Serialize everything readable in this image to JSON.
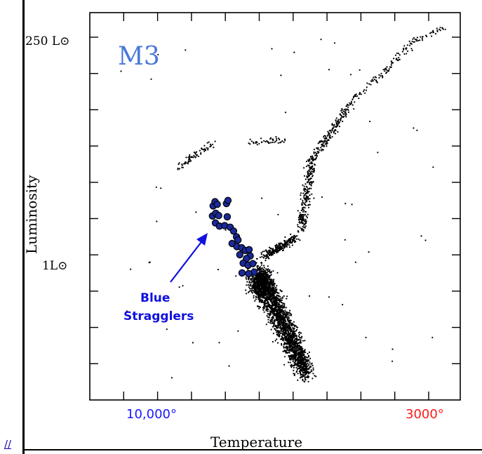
{
  "link": {
    "text": "//"
  },
  "chart_data": {
    "type": "scatter",
    "title": "M3",
    "xlabel": "Temperature",
    "ylabel": "Luminosity",
    "x_tick_labels": [
      {
        "text": "10,000°",
        "color": "#1a1aff"
      },
      {
        "text": "3000°",
        "color": "#ff1a1a"
      }
    ],
    "y_tick_labels": [
      {
        "text": "250 L⊙"
      },
      {
        "text": "1L⊙"
      }
    ],
    "annotation": {
      "lines": [
        "Blue",
        "Stragglers"
      ],
      "color": "#1010e0"
    },
    "colors": {
      "stars": "#000000",
      "blue_stragglers": "#1a2a9a",
      "title": "#4a78d8"
    },
    "series": [
      {
        "name": "Blue Stragglers",
        "points": [
          [
            0.333,
            0.501
          ],
          [
            0.338,
            0.512
          ],
          [
            0.344,
            0.505
          ],
          [
            0.331,
            0.475
          ],
          [
            0.34,
            0.482
          ],
          [
            0.348,
            0.476
          ],
          [
            0.339,
            0.457
          ],
          [
            0.35,
            0.449
          ],
          [
            0.369,
            0.507
          ],
          [
            0.373,
            0.515
          ],
          [
            0.371,
            0.473
          ],
          [
            0.364,
            0.45
          ],
          [
            0.379,
            0.446
          ],
          [
            0.388,
            0.436
          ],
          [
            0.396,
            0.421
          ],
          [
            0.384,
            0.404
          ],
          [
            0.397,
            0.396
          ],
          [
            0.4,
            0.413
          ],
          [
            0.405,
            0.375
          ],
          [
            0.41,
            0.393
          ],
          [
            0.42,
            0.386
          ],
          [
            0.43,
            0.388
          ],
          [
            0.433,
            0.372
          ],
          [
            0.423,
            0.365
          ],
          [
            0.414,
            0.353
          ],
          [
            0.427,
            0.348
          ],
          [
            0.44,
            0.352
          ],
          [
            0.444,
            0.33
          ],
          [
            0.411,
            0.328
          ],
          [
            0.429,
            0.326
          ]
        ]
      }
    ]
  }
}
